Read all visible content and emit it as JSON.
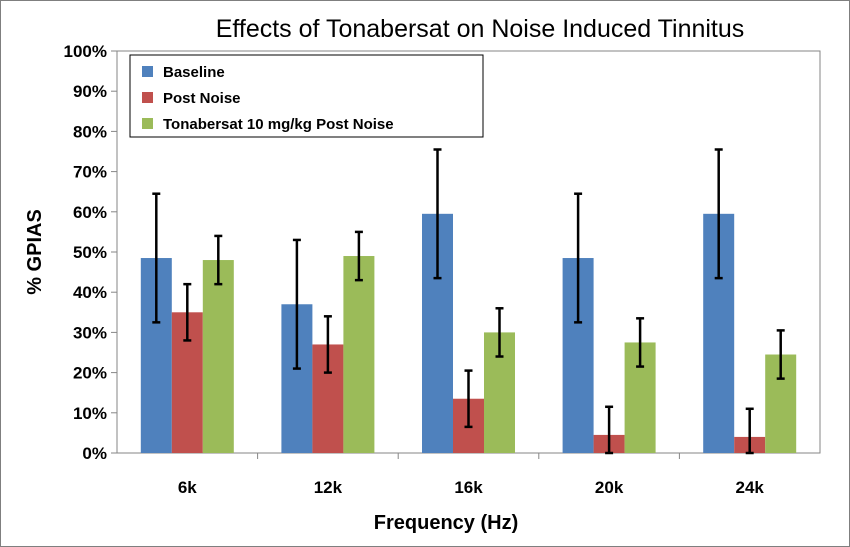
{
  "chart_data": {
    "type": "bar",
    "title": "Effects of Tonabersat on Noise Induced Tinnitus",
    "xlabel": "Frequency (Hz)",
    "ylabel": "% GPIAS",
    "categories": [
      "6k",
      "12k",
      "16k",
      "20k",
      "24k"
    ],
    "ylim": [
      0,
      100
    ],
    "yticks": [
      "0%",
      "10%",
      "20%",
      "30%",
      "40%",
      "50%",
      "60%",
      "70%",
      "80%",
      "90%",
      "100%"
    ],
    "grid": false,
    "legend_position": "top-left",
    "series": [
      {
        "name": "Baseline",
        "color": "#4f81bd",
        "values": [
          48.5,
          37,
          59.5,
          48.5,
          59.5
        ],
        "errors": [
          16,
          16,
          16,
          16,
          16
        ]
      },
      {
        "name": "Post Noise",
        "color": "#c0504d",
        "values": [
          35,
          27,
          13.5,
          4.5,
          4
        ],
        "errors": [
          7,
          7,
          7,
          7,
          7
        ]
      },
      {
        "name": "Tonabersat 10 mg/kg Post Noise",
        "color": "#9bbb59",
        "values": [
          48,
          49,
          30,
          27.5,
          24.5
        ],
        "errors": [
          6,
          6,
          6,
          6,
          6
        ]
      }
    ]
  }
}
